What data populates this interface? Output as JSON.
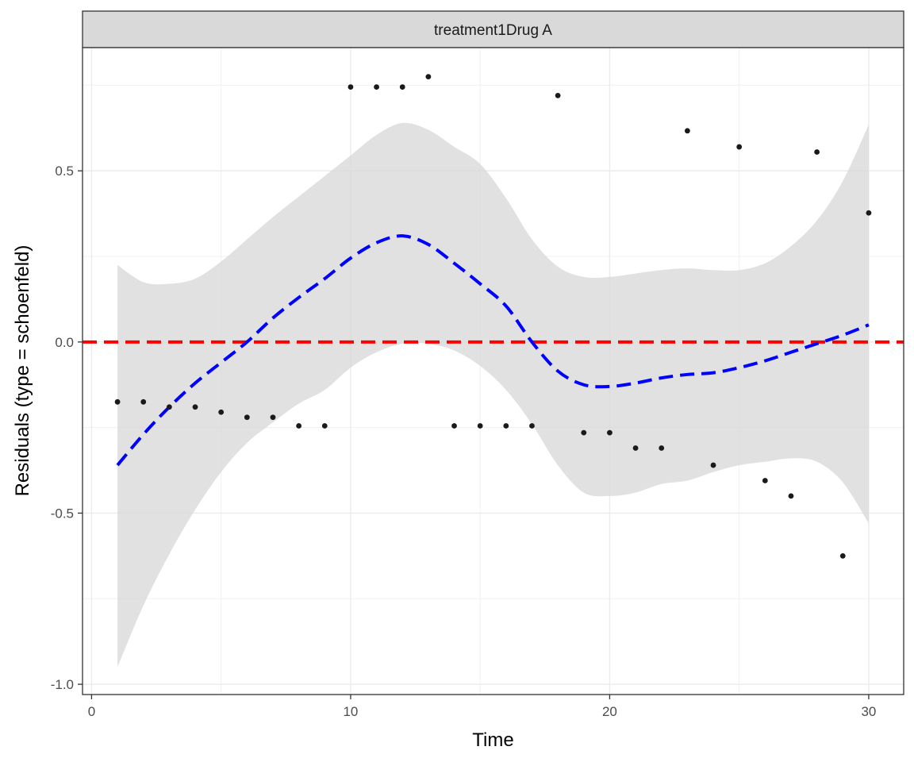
{
  "chart_data": {
    "type": "scatter",
    "facet_label": "treatment1Drug A",
    "xlabel": "Time",
    "ylabel": "Residuals (type = schoenfeld)",
    "xlim": [
      -0.35,
      31.35
    ],
    "ylim": [
      -1.03,
      0.86
    ],
    "x_ticks": [
      0,
      10,
      20,
      30
    ],
    "x_tick_labels": [
      "0",
      "10",
      "20",
      "30"
    ],
    "y_ticks": [
      -1.0,
      -0.5,
      0.0,
      0.5
    ],
    "y_tick_labels": [
      "-1.0",
      "-0.5",
      "0.0",
      "0.5"
    ],
    "grid": true,
    "points": {
      "x": [
        1,
        2,
        3,
        4,
        5,
        6,
        7,
        8,
        9,
        10,
        11,
        12,
        13,
        14,
        15,
        16,
        17,
        18,
        19,
        20,
        21,
        22,
        23,
        24,
        25,
        26,
        27,
        28,
        29,
        30
      ],
      "y": [
        -0.175,
        -0.175,
        -0.19,
        -0.19,
        -0.205,
        -0.22,
        -0.22,
        -0.245,
        -0.245,
        0.745,
        0.745,
        0.745,
        0.775,
        -0.245,
        -0.245,
        -0.245,
        -0.245,
        0.72,
        -0.265,
        -0.265,
        -0.31,
        -0.31,
        0.617,
        -0.36,
        0.57,
        -0.405,
        -0.45,
        0.555,
        -0.625,
        0.377
      ]
    },
    "smooth": {
      "x": [
        1,
        2,
        3,
        4,
        5,
        6,
        7,
        8,
        9,
        10,
        11,
        12,
        13,
        14,
        15,
        16,
        17,
        18,
        19,
        20,
        21,
        22,
        23,
        24,
        25,
        26,
        27,
        28,
        29,
        30
      ],
      "y": [
        -0.36,
        -0.27,
        -0.19,
        -0.12,
        -0.06,
        0.0,
        0.07,
        0.13,
        0.185,
        0.245,
        0.29,
        0.31,
        0.285,
        0.23,
        0.17,
        0.105,
        0.0,
        -0.085,
        -0.125,
        -0.13,
        -0.12,
        -0.105,
        -0.095,
        -0.09,
        -0.075,
        -0.055,
        -0.03,
        -0.005,
        0.02,
        0.05
      ],
      "ci_lower": [
        -0.95,
        -0.77,
        -0.62,
        -0.49,
        -0.38,
        -0.295,
        -0.235,
        -0.18,
        -0.14,
        -0.075,
        -0.03,
        -0.005,
        -0.005,
        -0.025,
        -0.07,
        -0.14,
        -0.24,
        -0.36,
        -0.44,
        -0.45,
        -0.44,
        -0.415,
        -0.405,
        -0.38,
        -0.36,
        -0.35,
        -0.34,
        -0.35,
        -0.41,
        -0.53
      ],
      "ci_upper": [
        0.225,
        0.175,
        0.17,
        0.185,
        0.235,
        0.3,
        0.365,
        0.425,
        0.485,
        0.545,
        0.605,
        0.64,
        0.62,
        0.57,
        0.52,
        0.42,
        0.3,
        0.22,
        0.19,
        0.19,
        0.2,
        0.21,
        0.215,
        0.21,
        0.21,
        0.23,
        0.28,
        0.355,
        0.47,
        0.635
      ],
      "style": "dashed",
      "color": "#0000ff"
    },
    "reference_line": {
      "y": 0,
      "style": "dashed",
      "color": "#ff0000"
    },
    "ci_band_color": "#d9d9d9",
    "point_color": "#1a1a1a"
  }
}
